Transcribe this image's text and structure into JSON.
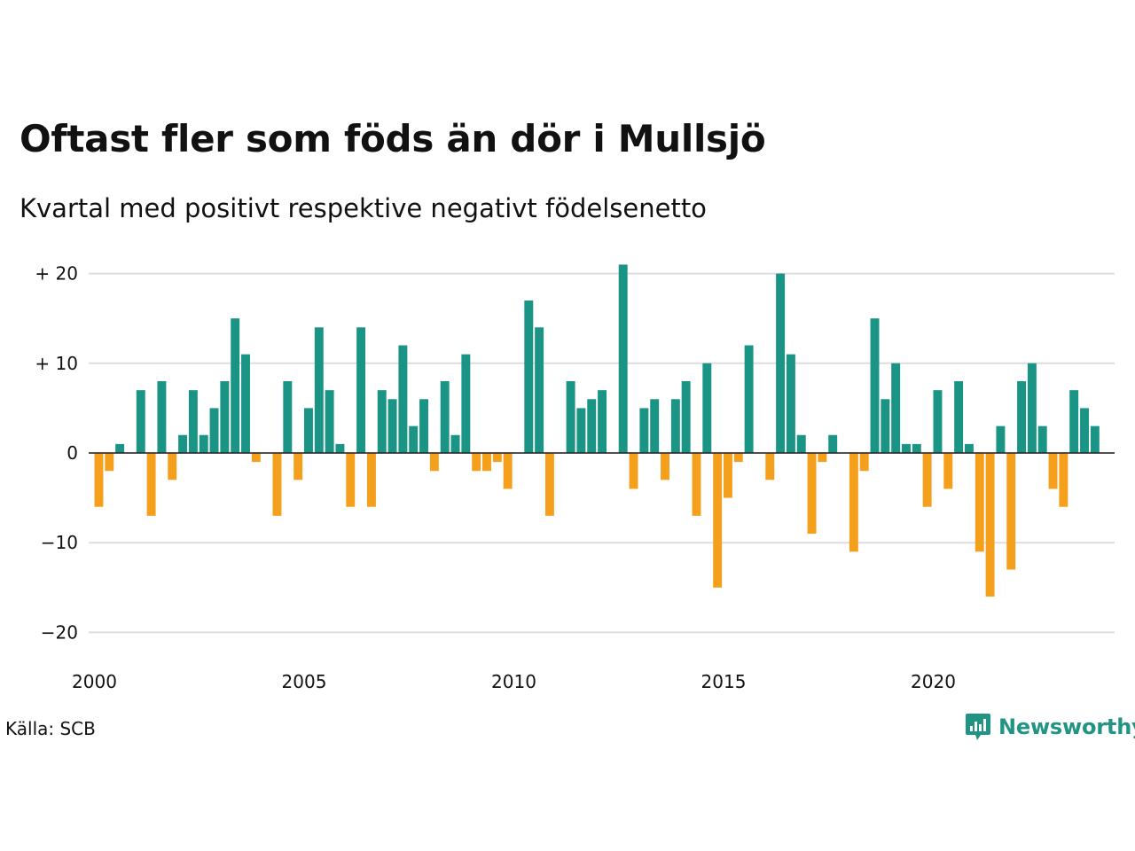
{
  "header": {
    "title": "Oftast fler som föds än dör i Mullsjö",
    "subtitle": "Kvartal med positivt respektive negativt födelsenetto"
  },
  "footer": {
    "source": "Källa: SCB",
    "brand": "Newsworthy",
    "brand_icon": "newsworthy-logo-icon"
  },
  "colors": {
    "positive": "#1a9485",
    "negative": "#f5a01d",
    "grid": "#dddddd",
    "brand": "#219484"
  },
  "chart_data": {
    "type": "bar",
    "start_year": 2000,
    "periods_per_year": 4,
    "x_ticks": [
      "2000",
      "2005",
      "2010",
      "2015",
      "2020"
    ],
    "y_ticks": [
      {
        "value": 20,
        "label": "+ 20"
      },
      {
        "value": 10,
        "label": "+ 10"
      },
      {
        "value": 0,
        "label": "0"
      },
      {
        "value": -10,
        "label": "−10"
      },
      {
        "value": -20,
        "label": "−20"
      }
    ],
    "ylim": [
      -20,
      21
    ],
    "grid": true,
    "values": [
      -6,
      -2,
      1,
      0,
      7,
      -7,
      8,
      -3,
      2,
      7,
      2,
      5,
      8,
      15,
      11,
      -1,
      0,
      -7,
      8,
      -3,
      5,
      14,
      7,
      1,
      -6,
      14,
      -6,
      7,
      6,
      12,
      3,
      6,
      -2,
      8,
      2,
      11,
      -2,
      -2,
      -1,
      -4,
      0,
      17,
      14,
      -7,
      0,
      8,
      5,
      6,
      7,
      0,
      21,
      -4,
      5,
      6,
      -3,
      6,
      8,
      -7,
      10,
      -15,
      -5,
      -1,
      12,
      0,
      -3,
      20,
      11,
      2,
      -9,
      -1,
      2,
      0,
      -11,
      -2,
      15,
      6,
      10,
      1,
      1,
      -6,
      7,
      -4,
      8,
      1,
      -11,
      -16,
      3,
      -13,
      8,
      10,
      3,
      -4,
      -6,
      7,
      5,
      3
    ]
  }
}
